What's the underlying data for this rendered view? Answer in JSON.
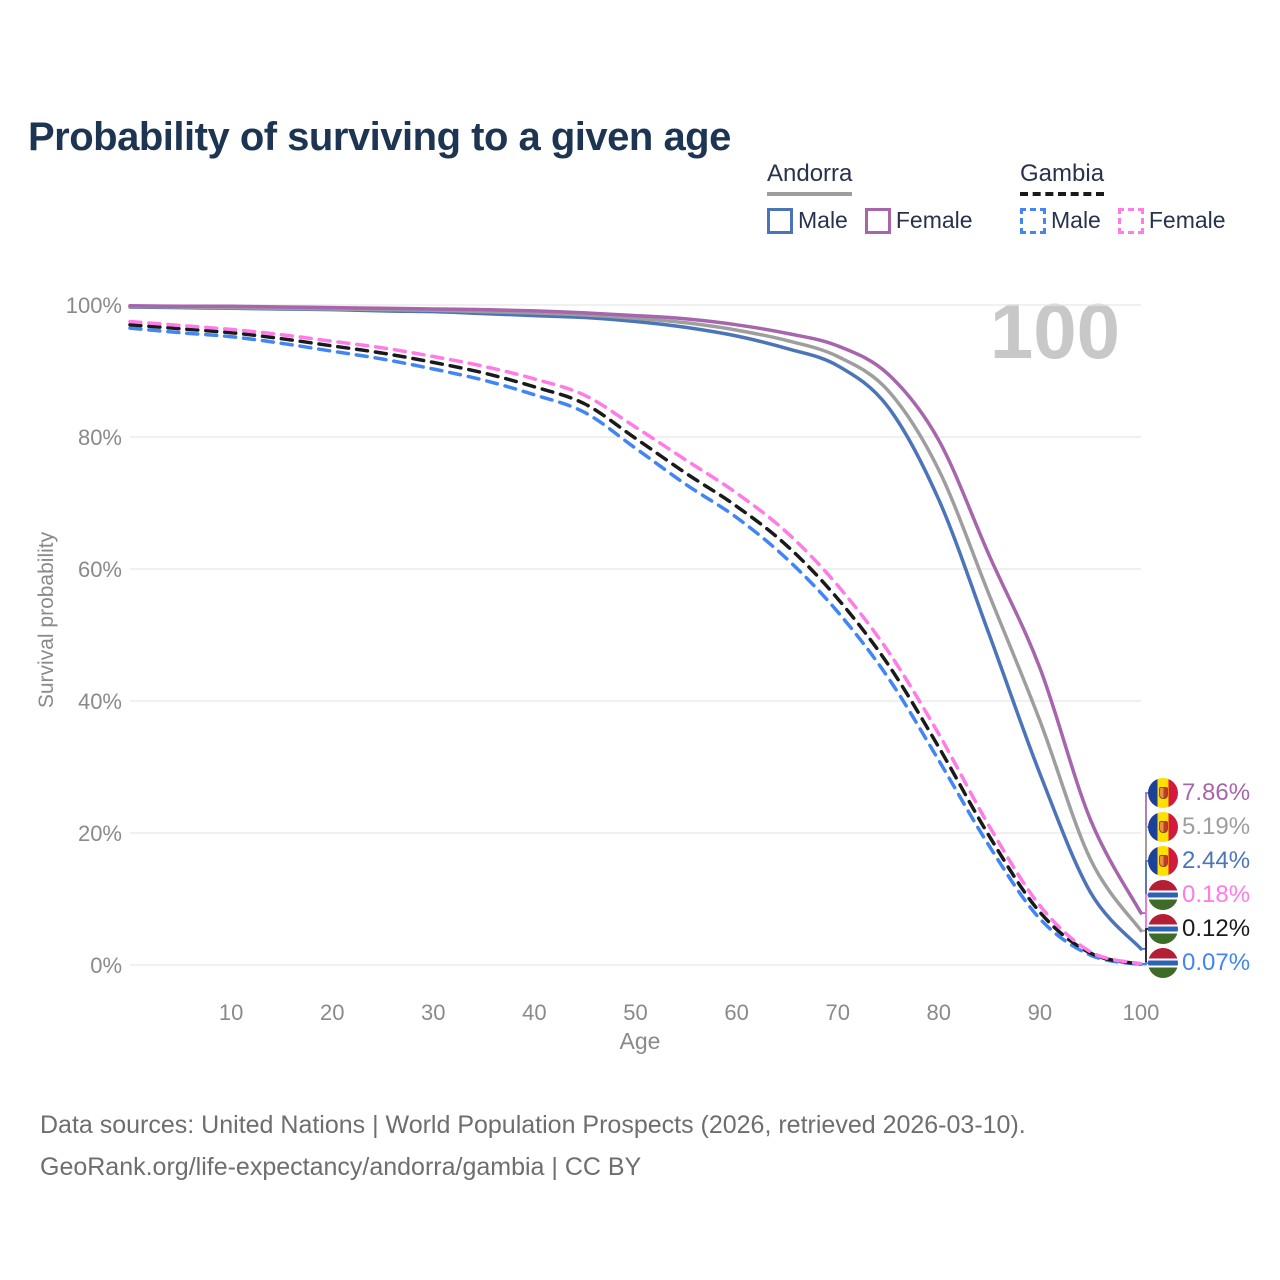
{
  "header": {
    "title": "Probability of surviving to a given age"
  },
  "legend": {
    "groups": [
      {
        "country": "Andorra",
        "line_style": "solid",
        "underline_color": "#9e9e9e",
        "items": [
          {
            "label": "Male",
            "color": "#4c74b8"
          },
          {
            "label": "Female",
            "color": "#a765ac"
          }
        ]
      },
      {
        "country": "Gambia",
        "line_style": "dashed",
        "underline_color": "#1a1a1a",
        "items": [
          {
            "label": "Male",
            "color": "#4285f4"
          },
          {
            "label": "Female",
            "color": "#ff7be5"
          }
        ]
      }
    ]
  },
  "chart_data": {
    "type": "line",
    "title": "Probability of surviving to a given age",
    "xlabel": "Age",
    "ylabel": "Survival probability",
    "ylim": [
      0,
      100
    ],
    "xlim": [
      0,
      100
    ],
    "grid": "horizontal",
    "age_counter": "100",
    "x_ticks": [
      10,
      20,
      30,
      40,
      50,
      60,
      70,
      80,
      90,
      100
    ],
    "y_ticks": [
      "0%",
      "20%",
      "40%",
      "60%",
      "80%",
      "100%"
    ],
    "x": [
      0,
      5,
      10,
      15,
      20,
      25,
      30,
      35,
      40,
      45,
      50,
      55,
      60,
      65,
      70,
      75,
      80,
      85,
      90,
      95,
      100
    ],
    "series": [
      {
        "name": "Gambia Male",
        "country": "Gambia",
        "sex": "male",
        "color": "#4285f4",
        "dash": true,
        "values": [
          96.5,
          95.8,
          95.2,
          94.2,
          93.0,
          91.8,
          90.3,
          88.6,
          86.4,
          83.7,
          78.3,
          72.8,
          67.8,
          61.5,
          53.5,
          43.5,
          31.0,
          18.0,
          7.0,
          1.5,
          0.07
        ]
      },
      {
        "name": "Gambia Both sexes",
        "country": "Gambia",
        "sex": "both",
        "color": "#1a1a1a",
        "dash": true,
        "values": [
          97.0,
          96.4,
          95.8,
          94.9,
          93.8,
          92.7,
          91.3,
          89.7,
          87.6,
          85.0,
          79.8,
          74.5,
          69.5,
          63.5,
          55.5,
          45.5,
          33.0,
          19.5,
          8.0,
          1.8,
          0.12
        ]
      },
      {
        "name": "Gambia Female",
        "country": "Gambia",
        "sex": "female",
        "color": "#ff7be5",
        "dash": true,
        "values": [
          97.5,
          96.9,
          96.3,
          95.5,
          94.5,
          93.5,
          92.2,
          90.7,
          88.8,
          86.3,
          81.5,
          76.5,
          71.5,
          65.5,
          57.5,
          47.5,
          35.0,
          21.0,
          9.0,
          2.0,
          0.18
        ]
      },
      {
        "name": "Andorra Male",
        "country": "Andorra",
        "sex": "male",
        "color": "#4c74b8",
        "dash": false,
        "values": [
          99.7,
          99.6,
          99.5,
          99.4,
          99.3,
          99.1,
          99.0,
          98.7,
          98.4,
          98.1,
          97.5,
          96.6,
          95.3,
          93.4,
          90.8,
          84.5,
          70.5,
          50.0,
          29.0,
          11.0,
          2.44
        ]
      },
      {
        "name": "Andorra Both sexes",
        "country": "Andorra",
        "sex": "both",
        "color": "#9e9e9e",
        "dash": false,
        "values": [
          99.8,
          99.7,
          99.6,
          99.5,
          99.4,
          99.3,
          99.2,
          99.0,
          98.8,
          98.5,
          98.0,
          97.3,
          96.2,
          94.6,
          92.2,
          87.0,
          75.0,
          56.0,
          37.0,
          16.0,
          5.19
        ]
      },
      {
        "name": "Andorra Female",
        "country": "Andorra",
        "sex": "female",
        "color": "#a765ac",
        "dash": false,
        "values": [
          99.9,
          99.8,
          99.8,
          99.7,
          99.6,
          99.5,
          99.4,
          99.3,
          99.1,
          98.8,
          98.4,
          97.9,
          97.0,
          95.7,
          93.8,
          89.5,
          79.5,
          62.0,
          45.0,
          22.0,
          7.86
        ]
      }
    ]
  },
  "end_labels": [
    {
      "country": "andorra",
      "series": "Andorra Female",
      "value": "7.86%",
      "pct": 7.86,
      "color": "#a765ac"
    },
    {
      "country": "andorra",
      "series": "Andorra Both sexes",
      "value": "5.19%",
      "pct": 5.19,
      "color": "#9e9e9e"
    },
    {
      "country": "andorra",
      "series": "Andorra Male",
      "value": "2.44%",
      "pct": 2.44,
      "color": "#4c74b8"
    },
    {
      "country": "gambia",
      "series": "Gambia Female",
      "value": "0.18%",
      "pct": 0.18,
      "color": "#ff7be5"
    },
    {
      "country": "gambia",
      "series": "Gambia Both sexes",
      "value": "0.12%",
      "pct": 0.12,
      "color": "#1a1a1a"
    },
    {
      "country": "gambia",
      "series": "Gambia Male",
      "value": "0.07%",
      "pct": 0.07,
      "color": "#4285f4"
    }
  ],
  "footer": {
    "line1": "Data sources: United Nations | World Population Prospects (2026, retrieved 2026-03-10).",
    "line2": "GeoRank.org/life-expectancy/andorra/gambia | CC BY"
  }
}
